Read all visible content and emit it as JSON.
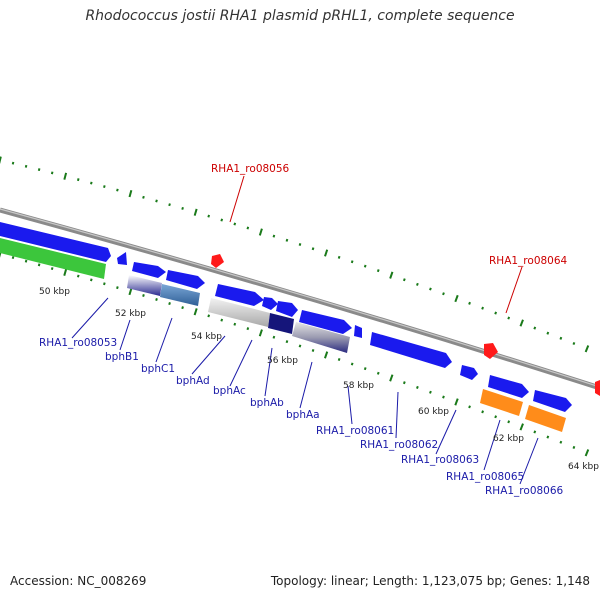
{
  "title": "Rhodococcus jostii RHA1 plasmid pRHL1, complete sequence",
  "footer": {
    "accession": "Accession: NC_008269",
    "summary": "Topology: linear; Length: 1,123,075 bp; Genes: 1,148"
  },
  "scale_labels": [
    "50 kbp",
    "52 kbp",
    "54 kbp",
    "56 kbp",
    "58 kbp",
    "60 kbp",
    "62 kbp",
    "64 kbp"
  ],
  "gene_labels": [
    "RHA1_ro08053",
    "bphB1",
    "bphC1",
    "bphAd",
    "bphAc",
    "bphAb",
    "bphAa",
    "RHA1_ro08061",
    "RHA1_ro08062",
    "RHA1_ro08063",
    "RHA1_ro08065",
    "RHA1_ro08066"
  ],
  "red_labels": [
    "RHA1_ro08056",
    "RHA1_ro08064"
  ],
  "colors": {
    "gene_blue": "#1a1aee",
    "gene_green": "#3cc63c",
    "gene_orange": "#ff8c1a",
    "gene_steel": "#4a7db0",
    "gene_navy": "#15157a",
    "marker_red": "#ff1a1a",
    "backbone": "#8a8a8a",
    "tick_green": "#1a7a1a",
    "label_blue": "#1a1aa8",
    "label_red": "#cc0000"
  }
}
